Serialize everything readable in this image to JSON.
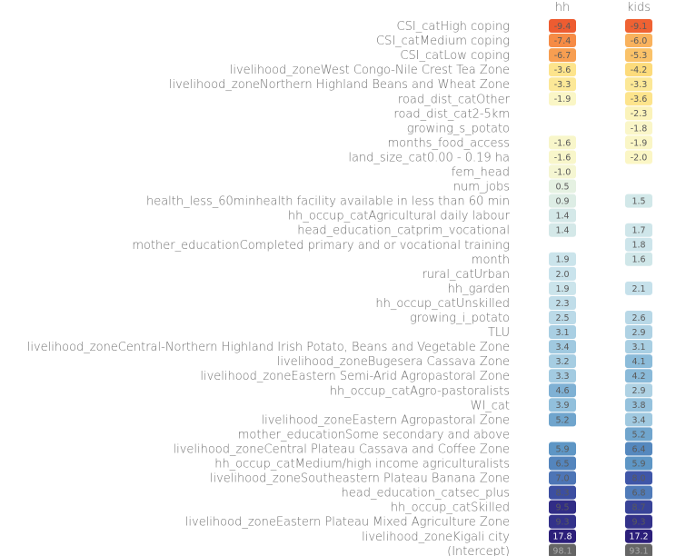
{
  "chart_data": {
    "type": "heatmap",
    "columns": [
      "hh",
      "kids"
    ],
    "rows": [
      {
        "label": "CSI_catHigh coping",
        "hh": -9.4,
        "kids": -9.1
      },
      {
        "label": "CSI_catMedium coping",
        "hh": -7.4,
        "kids": -6.0
      },
      {
        "label": "CSI_catLow coping",
        "hh": -6.7,
        "kids": -5.3
      },
      {
        "label": "livelihood_zoneWest Congo-Nile Crest Tea Zone",
        "hh": -3.6,
        "kids": -4.2
      },
      {
        "label": "livelihood_zoneNorthern Highland Beans and Wheat Zone",
        "hh": -3.3,
        "kids": -3.3
      },
      {
        "label": "road_dist_catOther",
        "hh": -1.9,
        "kids": -3.6
      },
      {
        "label": "road_dist_cat2-5km",
        "hh": null,
        "kids": -2.3
      },
      {
        "label": "growing_s_potato",
        "hh": null,
        "kids": -1.8
      },
      {
        "label": "months_food_access",
        "hh": -1.6,
        "kids": -1.9
      },
      {
        "label": "land_size_cat0.00 - 0.19 ha",
        "hh": -1.6,
        "kids": -2.0
      },
      {
        "label": "fem_head",
        "hh": -1.0,
        "kids": null
      },
      {
        "label": "num_jobs",
        "hh": 0.5,
        "kids": null
      },
      {
        "label": "health_less_60minhealth facility available in less than 60 min",
        "hh": 0.9,
        "kids": 1.5
      },
      {
        "label": "hh_occup_catAgricultural daily labour",
        "hh": 1.4,
        "kids": null
      },
      {
        "label": "head_education_catprim_vocational",
        "hh": 1.4,
        "kids": 1.7
      },
      {
        "label": "mother_educationCompleted primary and or vocational training",
        "hh": null,
        "kids": 1.8
      },
      {
        "label": "month",
        "hh": 1.9,
        "kids": 1.6
      },
      {
        "label": "rural_catUrban",
        "hh": 2.0,
        "kids": null
      },
      {
        "label": "hh_garden",
        "hh": 1.9,
        "kids": 2.1
      },
      {
        "label": "hh_occup_catUnskilled",
        "hh": 2.3,
        "kids": null
      },
      {
        "label": "growing_i_potato",
        "hh": 2.5,
        "kids": 2.6
      },
      {
        "label": "TLU",
        "hh": 3.1,
        "kids": 2.9
      },
      {
        "label": "livelihood_zoneCentral-Northern Highland Irish Potato, Beans and Vegetable Zone",
        "hh": 3.4,
        "kids": 3.1
      },
      {
        "label": "livelihood_zoneBugesera Cassava Zone",
        "hh": 3.2,
        "kids": 4.1
      },
      {
        "label": "livelihood_zoneEastern Semi-Arid Agropastoral Zone",
        "hh": 3.3,
        "kids": 4.2
      },
      {
        "label": "hh_occup_catAgro-pastoralists",
        "hh": 4.6,
        "kids": 2.9
      },
      {
        "label": "WI_cat",
        "hh": 3.9,
        "kids": 3.8
      },
      {
        "label": "livelihood_zoneEastern Agropastoral Zone",
        "hh": 5.2,
        "kids": 3.4
      },
      {
        "label": "mother_educationSome secondary and above",
        "hh": null,
        "kids": 5.2
      },
      {
        "label": "livelihood_zoneCentral Plateau Cassava and Coffee Zone",
        "hh": 5.9,
        "kids": 6.4
      },
      {
        "label": "hh_occup_catMedium/high income agriculturalists",
        "hh": 6.5,
        "kids": 5.9
      },
      {
        "label": "livelihood_zoneSoutheastern Plateau Banana Zone",
        "hh": 7.0,
        "kids": 8.0
      },
      {
        "label": "head_education_catsec_plus",
        "hh": 8.3,
        "kids": 6.8
      },
      {
        "label": "hh_occup_catSkilled",
        "hh": 9.5,
        "kids": 8.7
      },
      {
        "label": "livelihood_zoneEastern Plateau Mixed Agriculture Zone",
        "hh": 9.3,
        "kids": 9.3
      },
      {
        "label": "livelihood_zoneKigali city",
        "hh": 17.8,
        "kids": 17.2
      },
      {
        "label": "(Intercept)",
        "hh": 98.1,
        "kids": 93.1
      }
    ],
    "colors": {
      "intercept": "#666666",
      "label_text": "#6f6f6f",
      "scale": [
        "#2c1f7a",
        "#3f56a8",
        "#5b94c4",
        "#8fbedb",
        "#c9e3ec",
        "#eef5df",
        "#fbf6c5",
        "#fde07e",
        "#f9b25d",
        "#f47a3b",
        "#ea4f2d"
      ]
    },
    "legend": "none",
    "grid": false
  }
}
